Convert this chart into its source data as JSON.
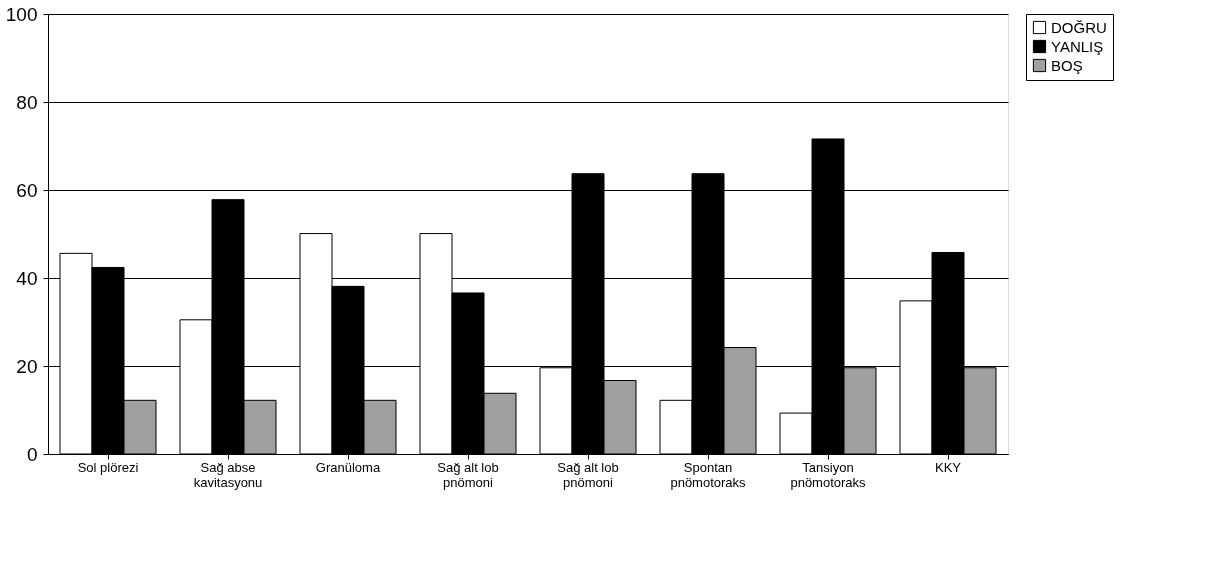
{
  "chart_data": {
    "type": "bar",
    "categories": [
      "Sol plörezi",
      "Sağ abse\nkavitasyonu",
      "Granüloma",
      "Sağ alt lob\npnömoni",
      "Sağ alt lob\npnömoni",
      "Spontan\npnömotoraks",
      "Tansiyon\npnömotoraks",
      "KKY"
    ],
    "series": [
      {
        "name": "DOĞRU",
        "color": "#ffffff",
        "values": [
          45.6,
          30.5,
          50.1,
          50.1,
          19.6,
          12.2,
          9.3,
          34.8
        ]
      },
      {
        "name": "YANLIŞ",
        "color": "#000000",
        "values": [
          42.4,
          57.8,
          38.1,
          36.6,
          63.7,
          63.7,
          71.6,
          45.8
        ]
      },
      {
        "name": "BOŞ",
        "color": "#a0a0a0",
        "values": [
          12.2,
          12.2,
          12.2,
          13.8,
          16.7,
          24.2,
          19.6,
          19.6
        ]
      }
    ],
    "ylim": [
      0,
      100
    ],
    "yticks": [
      0,
      20,
      40,
      60,
      80,
      100
    ],
    "grid": "y",
    "legend": "right"
  }
}
